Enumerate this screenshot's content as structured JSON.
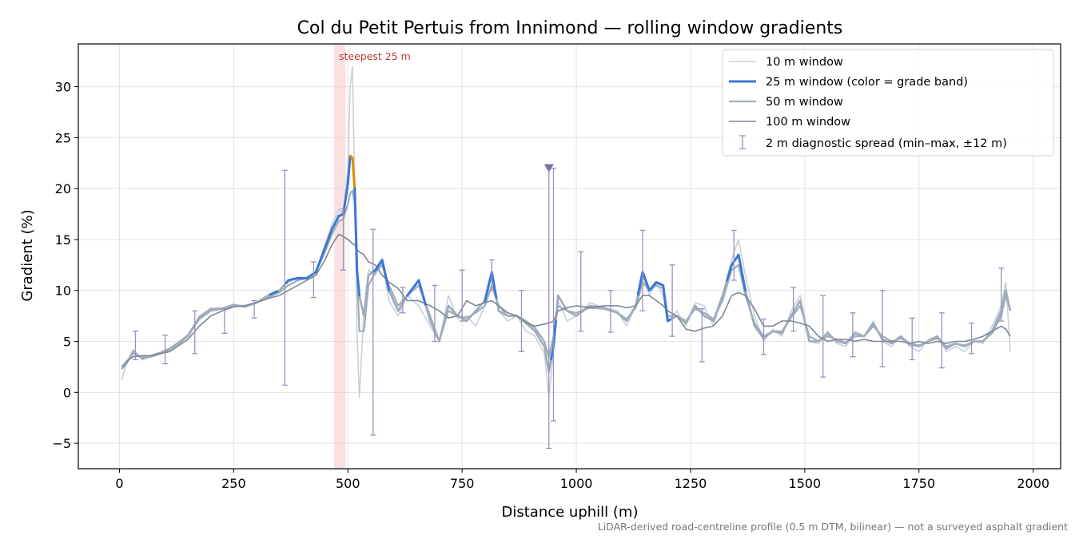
{
  "chart_data": {
    "type": "line",
    "title": "Col du Petit Pertuis from Innimond — rolling window gradients",
    "xlabel": "Distance uphill (m)",
    "ylabel": "Gradient (%)",
    "xlim": [
      -90,
      2060
    ],
    "ylim": [
      -7.5,
      34.2
    ],
    "xticks": [
      0,
      250,
      500,
      750,
      1000,
      1250,
      1500,
      1750,
      2000
    ],
    "yticks": [
      -5,
      0,
      5,
      10,
      15,
      20,
      25,
      30
    ],
    "xtick_labels": [
      "0",
      "250",
      "500",
      "750",
      "1000",
      "1250",
      "1500",
      "1750",
      "2000"
    ],
    "ytick_labels": [
      "−5",
      "0",
      "5",
      "10",
      "15",
      "20",
      "25",
      "30"
    ],
    "grid": true,
    "legend_position": "upper-right",
    "x_knots": [
      5,
      15,
      30,
      50,
      70,
      90,
      110,
      130,
      150,
      175,
      200,
      225,
      250,
      275,
      300,
      325,
      350,
      370,
      390,
      410,
      430,
      450,
      465,
      480,
      490,
      500,
      505,
      510,
      515,
      520,
      525,
      535,
      545,
      560,
      575,
      590,
      610,
      630,
      655,
      680,
      700,
      720,
      740,
      760,
      780,
      800,
      815,
      830,
      850,
      870,
      890,
      910,
      930,
      940,
      950,
      960,
      980,
      1000,
      1030,
      1060,
      1090,
      1110,
      1130,
      1145,
      1160,
      1175,
      1190,
      1200,
      1220,
      1240,
      1260,
      1280,
      1300,
      1320,
      1340,
      1355,
      1370,
      1390,
      1410,
      1430,
      1450,
      1470,
      1490,
      1510,
      1530,
      1550,
      1570,
      1590,
      1610,
      1630,
      1650,
      1670,
      1690,
      1710,
      1730,
      1750,
      1770,
      1790,
      1810,
      1830,
      1850,
      1870,
      1890,
      1910,
      1930,
      1940,
      1950
    ],
    "series": [
      {
        "name": "10 m window",
        "color": "#c7d0db",
        "values": [
          1.2,
          2.8,
          4.2,
          3.2,
          3.5,
          3.8,
          4.2,
          4.8,
          5.5,
          7.5,
          8.2,
          8.3,
          8.6,
          8.4,
          8.8,
          9.5,
          10.0,
          10.8,
          11.3,
          11.2,
          11.8,
          14.5,
          16.5,
          18.0,
          17.5,
          22.0,
          30.0,
          32.0,
          20.0,
          6.0,
          -0.5,
          8.0,
          12.0,
          11.5,
          12.8,
          9.0,
          7.5,
          9.5,
          8.5,
          6.5,
          5.0,
          9.5,
          7.2,
          7.5,
          6.5,
          8.5,
          11.5,
          8.0,
          7.0,
          7.5,
          6.0,
          5.5,
          3.8,
          -0.5,
          4.0,
          9.0,
          7.0,
          7.5,
          8.8,
          8.3,
          8.0,
          6.5,
          8.5,
          11.5,
          9.5,
          10.8,
          9.5,
          7.0,
          8.0,
          6.5,
          8.8,
          8.5,
          6.5,
          9.5,
          13.0,
          15.0,
          11.5,
          7.5,
          5.0,
          6.2,
          5.5,
          8.0,
          9.5,
          5.0,
          4.8,
          6.0,
          4.8,
          4.5,
          6.0,
          5.5,
          7.0,
          5.0,
          4.5,
          5.5,
          4.5,
          4.0,
          5.2,
          5.5,
          4.0,
          4.5,
          4.0,
          5.0,
          4.8,
          6.5,
          8.5,
          10.8,
          4.0
        ]
      },
      {
        "name": "25 m window (color = grade band)",
        "color": "#3a78d6",
        "values": [
          2.3,
          2.8,
          4.0,
          3.3,
          3.6,
          3.9,
          4.3,
          4.9,
          5.6,
          7.4,
          8.2,
          8.2,
          8.6,
          8.4,
          8.8,
          9.5,
          10.0,
          11.0,
          11.2,
          11.2,
          11.8,
          14.2,
          16.0,
          17.3,
          17.5,
          20.5,
          23.2,
          23.0,
          20.0,
          12.0,
          9.5,
          7.5,
          11.5,
          12.0,
          13.0,
          10.0,
          8.0,
          9.5,
          11.0,
          7.0,
          5.0,
          8.5,
          7.5,
          7.0,
          8.0,
          9.0,
          11.8,
          8.0,
          7.5,
          7.5,
          6.8,
          6.0,
          4.5,
          2.0,
          4.5,
          9.5,
          8.0,
          7.5,
          8.5,
          8.3,
          7.8,
          7.0,
          8.5,
          11.8,
          10.0,
          10.8,
          10.5,
          7.0,
          7.5,
          6.8,
          8.5,
          7.5,
          7.0,
          9.5,
          12.5,
          13.5,
          10.0,
          6.5,
          5.3,
          6.0,
          5.8,
          7.5,
          9.0,
          5.0,
          5.0,
          5.8,
          5.0,
          4.8,
          5.8,
          5.5,
          6.8,
          5.2,
          4.8,
          5.5,
          4.7,
          4.5,
          5.0,
          5.5,
          4.3,
          4.8,
          4.5,
          5.0,
          5.0,
          6.0,
          8.0,
          10.0,
          8.0
        ]
      },
      {
        "name": "50 m window",
        "color": "#a1adbb",
        "values": [
          2.3,
          3.0,
          3.8,
          3.5,
          3.5,
          3.8,
          4.2,
          4.8,
          5.5,
          7.2,
          8.0,
          8.2,
          8.5,
          8.5,
          8.8,
          9.3,
          9.8,
          10.5,
          11.0,
          11.2,
          11.8,
          13.8,
          15.5,
          16.8,
          17.0,
          18.5,
          19.5,
          19.8,
          18.5,
          12.0,
          6.0,
          6.0,
          10.5,
          11.8,
          12.5,
          10.5,
          8.5,
          9.5,
          10.5,
          7.5,
          5.0,
          8.0,
          7.5,
          7.3,
          7.8,
          8.5,
          10.5,
          8.5,
          7.5,
          7.5,
          7.0,
          6.3,
          5.0,
          3.5,
          5.5,
          8.5,
          8.0,
          7.8,
          8.3,
          8.2,
          7.8,
          7.2,
          8.3,
          10.8,
          10.0,
          10.5,
          10.2,
          7.5,
          7.5,
          7.0,
          8.2,
          7.8,
          7.2,
          9.0,
          12.0,
          12.5,
          9.5,
          6.8,
          5.5,
          6.0,
          6.0,
          7.3,
          8.5,
          5.5,
          5.0,
          5.5,
          5.2,
          4.9,
          5.5,
          5.5,
          6.5,
          5.5,
          5.0,
          5.3,
          4.8,
          4.6,
          5.0,
          5.3,
          4.5,
          4.8,
          4.6,
          5.0,
          5.0,
          5.8,
          7.5,
          9.5,
          8.0
        ]
      },
      {
        "name": "100 m window",
        "color": "#7b8594",
        "values": [
          2.5,
          3.0,
          3.5,
          3.6,
          3.6,
          3.8,
          4.0,
          4.6,
          5.2,
          6.5,
          7.5,
          8.0,
          8.4,
          8.5,
          8.8,
          9.2,
          9.5,
          10.0,
          10.5,
          11.0,
          11.5,
          13.0,
          14.5,
          15.5,
          15.3,
          15.0,
          14.8,
          14.6,
          14.5,
          14.0,
          13.8,
          13.5,
          12.8,
          12.5,
          11.5,
          10.8,
          10.2,
          9.0,
          9.0,
          8.5,
          8.0,
          7.3,
          7.5,
          9.0,
          8.5,
          8.8,
          9.0,
          8.5,
          7.8,
          7.5,
          6.8,
          6.5,
          6.7,
          6.8,
          7.0,
          8.0,
          8.3,
          8.5,
          8.3,
          8.5,
          8.5,
          8.3,
          8.5,
          9.5,
          9.5,
          9.0,
          8.5,
          8.0,
          7.5,
          6.2,
          6.0,
          6.3,
          6.5,
          7.5,
          9.5,
          9.8,
          9.5,
          8.2,
          6.5,
          6.5,
          7.0,
          7.0,
          6.8,
          6.5,
          5.5,
          5.0,
          5.2,
          5.2,
          5.0,
          5.2,
          5.0,
          5.0,
          5.0,
          5.0,
          4.8,
          5.0,
          4.8,
          5.0,
          4.8,
          5.0,
          5.0,
          5.2,
          5.5,
          6.0,
          6.5,
          6.2,
          5.5
        ]
      }
    ],
    "grade_band_segments_25m": [
      {
        "band": "blue",
        "color": "#3a78d6",
        "x_range": [
          330,
          345
        ]
      },
      {
        "band": "blue",
        "color": "#3a78d6",
        "x_range": [
          365,
          480
        ]
      },
      {
        "band": "blue",
        "color": "#3a78d6",
        "x_range": [
          480,
          505
        ]
      },
      {
        "band": "orange",
        "color": "#e08a00",
        "x_range": [
          505,
          515
        ]
      },
      {
        "band": "blue",
        "color": "#3a78d6",
        "x_range": [
          515,
          525
        ]
      },
      {
        "band": "blue",
        "color": "#3a78d6",
        "x_range": [
          555,
          590
        ]
      },
      {
        "band": "blue",
        "color": "#3a78d6",
        "x_range": [
          630,
          670
        ]
      },
      {
        "band": "blue",
        "color": "#3a78d6",
        "x_range": [
          800,
          825
        ]
      },
      {
        "band": "blue",
        "color": "#3a78d6",
        "x_range": [
          945,
          955
        ]
      },
      {
        "band": "blue",
        "color": "#3a78d6",
        "x_range": [
          1135,
          1205
        ]
      },
      {
        "band": "blue",
        "color": "#3a78d6",
        "x_range": [
          1330,
          1370
        ]
      }
    ],
    "diagnostic_spread_2m": {
      "name": "2 m diagnostic spread (min–max, ±12 m)",
      "color": "#9a91bd",
      "bars": [
        {
          "x": 35,
          "low": 3.2,
          "high": 6.0
        },
        {
          "x": 100,
          "low": 2.8,
          "high": 5.6
        },
        {
          "x": 165,
          "low": 3.8,
          "high": 8.0
        },
        {
          "x": 230,
          "low": 5.8,
          "high": 8.2
        },
        {
          "x": 295,
          "low": 7.3,
          "high": 9.0
        },
        {
          "x": 362,
          "low": 0.7,
          "high": 21.8
        },
        {
          "x": 425,
          "low": 9.3,
          "high": 12.8
        },
        {
          "x": 490,
          "low": 12.0,
          "high": 18.0
        },
        {
          "x": 555,
          "low": -4.2,
          "high": 16.0
        },
        {
          "x": 620,
          "low": 7.8,
          "high": 10.3
        },
        {
          "x": 690,
          "low": 5.0,
          "high": 10.5
        },
        {
          "x": 750,
          "low": 7.0,
          "high": 12.0
        },
        {
          "x": 815,
          "low": 10.0,
          "high": 13.0
        },
        {
          "x": 880,
          "low": 4.0,
          "high": 10.0
        },
        {
          "x": 940,
          "low": -5.5,
          "high": 22.0
        },
        {
          "x": 950,
          "low": -2.8,
          "high": 22.0
        },
        {
          "x": 1010,
          "low": 6.0,
          "high": 13.8
        },
        {
          "x": 1075,
          "low": 5.9,
          "high": 10.0
        },
        {
          "x": 1145,
          "low": 8.0,
          "high": 15.9
        },
        {
          "x": 1210,
          "low": 5.5,
          "high": 12.5
        },
        {
          "x": 1275,
          "low": 3.0,
          "high": 8.2
        },
        {
          "x": 1345,
          "low": 11.0,
          "high": 15.9
        },
        {
          "x": 1410,
          "low": 3.7,
          "high": 7.2
        },
        {
          "x": 1475,
          "low": 6.0,
          "high": 10.3
        },
        {
          "x": 1540,
          "low": 1.5,
          "high": 9.5
        },
        {
          "x": 1605,
          "low": 3.5,
          "high": 7.8
        },
        {
          "x": 1670,
          "low": 2.5,
          "high": 10.0
        },
        {
          "x": 1735,
          "low": 3.2,
          "high": 7.3
        },
        {
          "x": 1800,
          "low": 2.4,
          "high": 7.8
        },
        {
          "x": 1865,
          "low": 3.8,
          "high": 6.8
        },
        {
          "x": 1930,
          "low": 7.0,
          "high": 12.2
        }
      ],
      "clipped_marker": {
        "x": 940,
        "y": 22.0
      }
    },
    "highlight_region": {
      "x_range": [
        470,
        495
      ],
      "label": "steepest 25 m",
      "color": "#f4c6c8"
    }
  },
  "footnote": "LiDAR-derived road-centreline profile (0.5 m DTM, bilinear) — not a surveyed asphalt gradient"
}
